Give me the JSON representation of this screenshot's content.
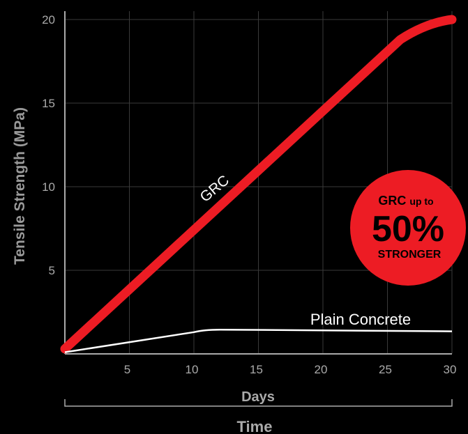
{
  "chart_data": {
    "type": "line",
    "title": "",
    "ylabel": "Tensile Strength (MPa)",
    "xlabel": "Days",
    "group_label": "Time",
    "xlim": [
      0,
      30
    ],
    "ylim": [
      0,
      20.5
    ],
    "xticks": [
      5,
      10,
      15,
      20,
      25,
      30
    ],
    "yticks": [
      5,
      10,
      15,
      20
    ],
    "grid": true,
    "series": [
      {
        "name": "GRC",
        "color": "#ed1c24",
        "x": [
          0,
          26,
          28,
          30
        ],
        "y": [
          0.3,
          18.8,
          19.8,
          20.0
        ]
      },
      {
        "name": "Plain Concrete",
        "color": "#ffffff",
        "x": [
          0,
          10,
          12,
          30
        ],
        "y": [
          0.1,
          1.3,
          1.45,
          1.35
        ]
      }
    ],
    "badge": {
      "line1_bold": "GRC",
      "line1_small": "up to",
      "big": "50%",
      "line3": "STRONGER",
      "color": "#ed1c24"
    },
    "colors": {
      "background": "#000000",
      "axis": "#aaaaaa",
      "grid": "#3a3a3a",
      "tick_label": "#aaaaaa"
    }
  }
}
